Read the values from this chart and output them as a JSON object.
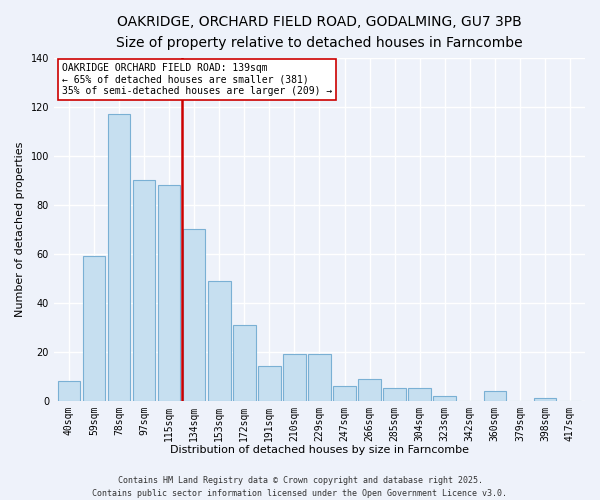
{
  "title": "OAKRIDGE, ORCHARD FIELD ROAD, GODALMING, GU7 3PB",
  "subtitle": "Size of property relative to detached houses in Farncombe",
  "xlabel": "Distribution of detached houses by size in Farncombe",
  "ylabel": "Number of detached properties",
  "categories": [
    "40sqm",
    "59sqm",
    "78sqm",
    "97sqm",
    "115sqm",
    "134sqm",
    "153sqm",
    "172sqm",
    "191sqm",
    "210sqm",
    "229sqm",
    "247sqm",
    "266sqm",
    "285sqm",
    "304sqm",
    "323sqm",
    "342sqm",
    "360sqm",
    "379sqm",
    "398sqm",
    "417sqm"
  ],
  "values": [
    8,
    59,
    117,
    90,
    88,
    70,
    49,
    31,
    14,
    19,
    19,
    6,
    9,
    5,
    5,
    2,
    0,
    4,
    0,
    1,
    0
  ],
  "bar_color": "#c6dff0",
  "bar_edge_color": "#7ab0d4",
  "vline_color": "#cc0000",
  "vline_x": 4.5,
  "ylim": [
    0,
    140
  ],
  "yticks": [
    0,
    20,
    40,
    60,
    80,
    100,
    120,
    140
  ],
  "annotation_title": "OAKRIDGE ORCHARD FIELD ROAD: 139sqm",
  "annotation_line1": "← 65% of detached houses are smaller (381)",
  "annotation_line2": "35% of semi-detached houses are larger (209) →",
  "footer_line1": "Contains HM Land Registry data © Crown copyright and database right 2025.",
  "footer_line2": "Contains public sector information licensed under the Open Government Licence v3.0.",
  "background_color": "#eef2fa",
  "grid_color": "#ffffff",
  "title_fontsize": 10,
  "subtitle_fontsize": 9,
  "axis_label_fontsize": 8,
  "tick_fontsize": 7,
  "annotation_fontsize": 7,
  "footer_fontsize": 6
}
